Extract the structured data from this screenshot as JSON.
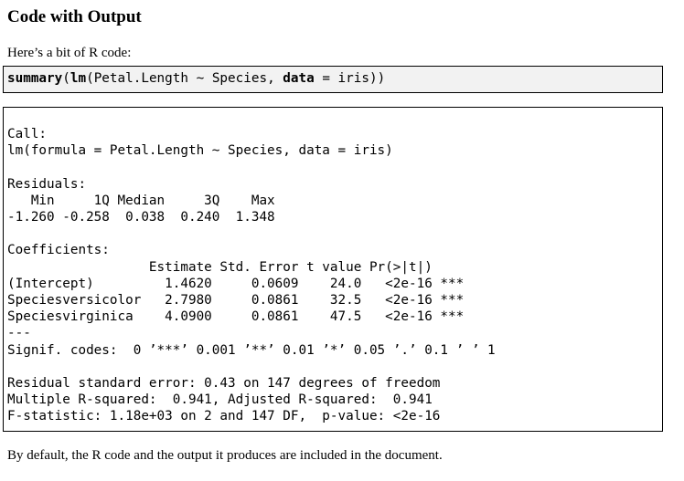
{
  "title": "Code with Output",
  "intro_text": "Here’s a bit of R code:",
  "code": {
    "func_summary": "summary",
    "paren_open": "(",
    "func_lm": "lm",
    "formula_text": "(Petal.Length ~ Species, ",
    "arg_data": "data",
    "assign_text": " = iris))"
  },
  "output": {
    "call_header": "Call:",
    "call_line": "lm(formula = Petal.Length ~ Species, data = iris)",
    "residuals_header": "Residuals:",
    "residuals_columns": "   Min     1Q Median     3Q    Max ",
    "residuals_values": "-1.260 -0.258  0.038  0.240  1.348 ",
    "coefficients_header": "Coefficients:",
    "coef_columns": "                  Estimate Std. Error t value Pr(>|t|)    ",
    "coef_rows": [
      "(Intercept)         1.4620     0.0609    24.0   <2e-16 ***",
      "Speciesversicolor   2.7980     0.0861    32.5   <2e-16 ***",
      "Speciesvirginica    4.0900     0.0861    47.5   <2e-16 ***"
    ],
    "separator": "---",
    "signif_codes": "Signif. codes:  0 ’***’ 0.001 ’**’ 0.01 ’*’ 0.05 ’.’ 0.1 ’ ’ 1",
    "residual_se": "Residual standard error: 0.43 on 147 degrees of freedom",
    "r_squared": "Multiple R-squared:  0.941, Adjusted R-squared:  0.941 ",
    "f_statistic": "F-statistic: 1.18e+03 on 2 and 147 DF,  p-value: <2e-16"
  },
  "footer_text": "By default, the R code and the output it produces are included in the document."
}
